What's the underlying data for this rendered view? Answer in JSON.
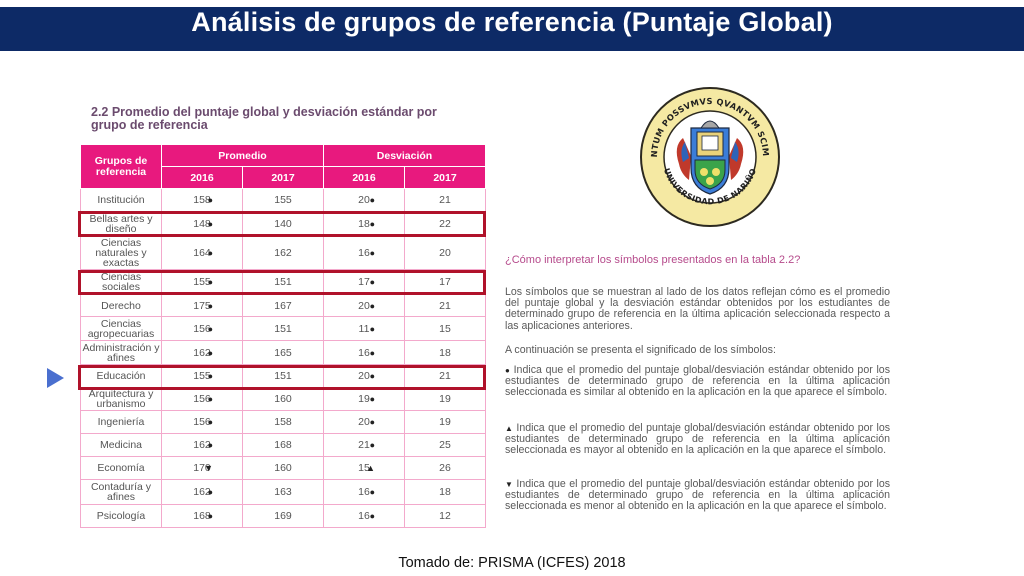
{
  "header": {
    "title": "Análisis de grupos de referencia (Puntaje Global)"
  },
  "table": {
    "heading": "2.2 Promedio del puntaje global y desviación estándar por grupo de referencia",
    "col_group": "Grupos de referencia",
    "col_promedio": "Promedio",
    "col_desviacion": "Desviación",
    "years": [
      "2016",
      "2017",
      "2016",
      "2017"
    ],
    "rows": [
      {
        "group": "Institución",
        "p2016": "158",
        "p2016_sym": "●",
        "p2017": "155",
        "d2016": "20",
        "d2016_sym": "●",
        "d2017": "21"
      },
      {
        "group": "Bellas artes y diseño",
        "p2016": "148",
        "p2016_sym": "●",
        "p2017": "140",
        "d2016": "18",
        "d2016_sym": "●",
        "d2017": "22"
      },
      {
        "group": "Ciencias naturales y exactas",
        "p2016": "164",
        "p2016_sym": "●",
        "p2017": "162",
        "d2016": "16",
        "d2016_sym": "●",
        "d2017": "20"
      },
      {
        "group": "Ciencias sociales",
        "p2016": "155",
        "p2016_sym": "●",
        "p2017": "151",
        "d2016": "17",
        "d2016_sym": "●",
        "d2017": "17"
      },
      {
        "group": "Derecho",
        "p2016": "175",
        "p2016_sym": "●",
        "p2017": "167",
        "d2016": "20",
        "d2016_sym": "●",
        "d2017": "21"
      },
      {
        "group": "Ciencias agropecuarias",
        "p2016": "156",
        "p2016_sym": "●",
        "p2017": "151",
        "d2016": "11",
        "d2016_sym": "●",
        "d2017": "15"
      },
      {
        "group": "Administración y afines",
        "p2016": "162",
        "p2016_sym": "●",
        "p2017": "165",
        "d2016": "16",
        "d2016_sym": "●",
        "d2017": "18"
      },
      {
        "group": "Educación",
        "p2016": "155",
        "p2016_sym": "●",
        "p2017": "151",
        "d2016": "20",
        "d2016_sym": "●",
        "d2017": "21"
      },
      {
        "group": "Arquitectura y urbanismo",
        "p2016": "156",
        "p2016_sym": "●",
        "p2017": "160",
        "d2016": "19",
        "d2016_sym": "●",
        "d2017": "19"
      },
      {
        "group": "Ingeniería",
        "p2016": "156",
        "p2016_sym": "●",
        "p2017": "158",
        "d2016": "20",
        "d2016_sym": "●",
        "d2017": "19"
      },
      {
        "group": "Medicina",
        "p2016": "162",
        "p2016_sym": "●",
        "p2017": "168",
        "d2016": "21",
        "d2016_sym": "●",
        "d2017": "25"
      },
      {
        "group": "Economía",
        "p2016": "170",
        "p2016_sym": "▼",
        "p2017": "160",
        "d2016": "15",
        "d2016_sym": "▲",
        "d2017": "26"
      },
      {
        "group": "Contaduría y afines",
        "p2016": "162",
        "p2016_sym": "●",
        "p2017": "163",
        "d2016": "16",
        "d2016_sym": "●",
        "d2017": "18"
      },
      {
        "group": "Psicología",
        "p2016": "168",
        "p2016_sym": "●",
        "p2017": "169",
        "d2016": "16",
        "d2016_sym": "●",
        "d2017": "12"
      }
    ]
  },
  "seal": {
    "motto": "TANTUM POSSVMVS QVANTVM SCIMVS",
    "name": "UNIVERSIDAD DE NARIÑO"
  },
  "explanation": {
    "question": "¿Cómo interpretar los símbolos presentados en la tabla 2.2?",
    "intro": "Los símbolos que se muestran al lado de los datos reflejan cómo es el promedio del puntaje global y la desviación estándar obtenidos por los estudiantes de determinado grupo de referencia en la última aplicación seleccionada respecto a las aplicaciones anteriores.",
    "lead": "A continuación se presenta el significado de los símbolos:",
    "items": [
      {
        "symbol": "●",
        "text": "Indica que el promedio del puntaje global/desviación estándar obtenido por los estudiantes de determinado grupo de referencia en la última aplicación seleccionada es similar al obtenido en la aplicación en la que aparece el símbolo."
      },
      {
        "symbol": "▲",
        "text": "Indica que el promedio del puntaje global/desviación estándar obtenido por los estudiantes de determinado grupo de referencia en la última aplicación seleccionada es mayor al obtenido en la aplicación en la que aparece el símbolo."
      },
      {
        "symbol": "▼",
        "text": "Indica que el promedio del puntaje global/desviación estándar obtenido por los estudiantes de determinado grupo de referencia en la última aplicación seleccionada es menor al obtenido en la aplicación en la que aparece el símbolo."
      }
    ]
  },
  "footer": {
    "source": "Tomado de: PRISMA (ICFES) 2018"
  }
}
